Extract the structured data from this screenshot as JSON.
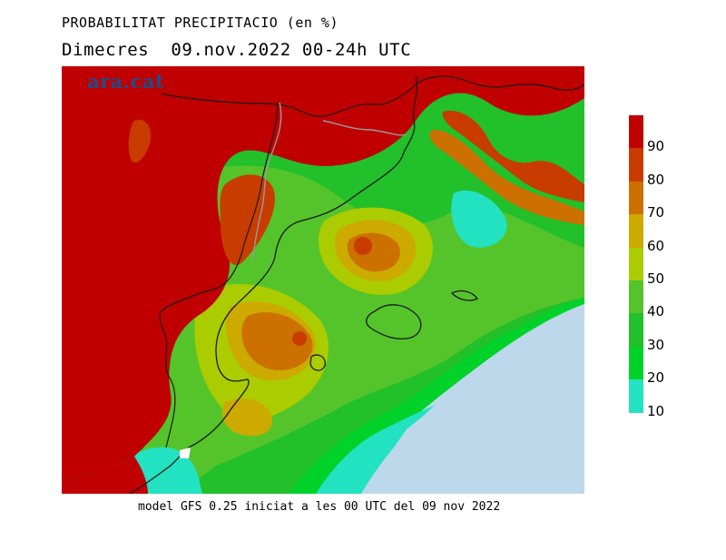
{
  "title_line1": "PROBABILITAT PRECIPITACIO (en %)",
  "title_line2": "Dimecres  09.nov.2022 00-24h UTC",
  "logo_text": "ara.cat",
  "footer_text": "model GFS 0.25 iniciat a les 00 UTC del 09 nov 2022",
  "legend": {
    "labels": [
      "90",
      "80",
      "70",
      "60",
      "50",
      "40",
      "30",
      "20",
      "10"
    ],
    "colors": [
      "#c00000",
      "#c83c00",
      "#cc7000",
      "#ccaa00",
      "#aacc00",
      "#55c42a",
      "#22c02a",
      "#00d22a",
      "#22e2c2"
    ]
  },
  "map_colors": {
    "sea": "#bcd8ea",
    "p90": "#c00000",
    "p80": "#c83c00",
    "p70": "#cc7000",
    "p60": "#ccaa00",
    "p50": "#aacc00",
    "p40": "#55c42a",
    "p30": "#22c02a",
    "p20": "#00d22a",
    "p10": "#22e2c2"
  }
}
